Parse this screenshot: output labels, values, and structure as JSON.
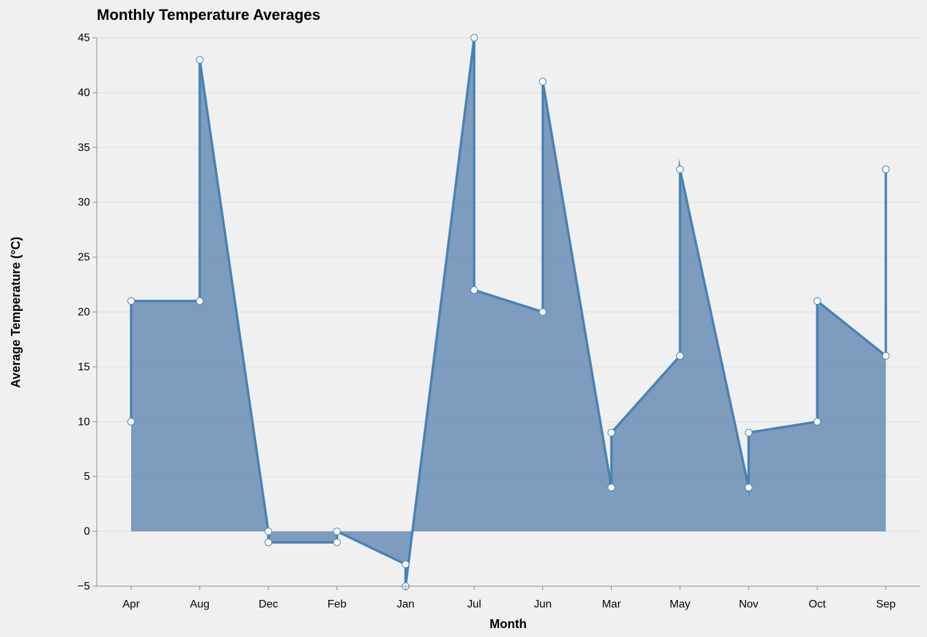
{
  "chart_data": {
    "type": "area",
    "title": "Monthly Temperature Averages",
    "xlabel": "Month",
    "ylabel": "Average Temperature (°C)",
    "categories": [
      "Apr",
      "Aug",
      "Dec",
      "Feb",
      "Jan",
      "Jul",
      "Jun",
      "Mar",
      "May",
      "Nov",
      "Oct",
      "Sep"
    ],
    "ylim": [
      -5,
      45
    ],
    "yticks": [
      -5,
      0,
      5,
      10,
      15,
      20,
      25,
      30,
      35,
      40,
      45
    ],
    "grid": true,
    "points": [
      {
        "month": "Apr",
        "value": 10
      },
      {
        "month": "Apr",
        "value": 21
      },
      {
        "month": "Aug",
        "value": 21
      },
      {
        "month": "Aug",
        "value": 43
      },
      {
        "month": "Dec",
        "value": 0
      },
      {
        "month": "Dec",
        "value": -1
      },
      {
        "month": "Feb",
        "value": -1
      },
      {
        "month": "Feb",
        "value": 0
      },
      {
        "month": "Jan",
        "value": -3
      },
      {
        "month": "Jan",
        "value": -5
      },
      {
        "month": "Jul",
        "value": 45
      },
      {
        "month": "Jul",
        "value": 22
      },
      {
        "month": "Jun",
        "value": 20
      },
      {
        "month": "Jun",
        "value": 41
      },
      {
        "month": "Mar",
        "value": 4
      },
      {
        "month": "Mar",
        "value": 9
      },
      {
        "month": "May",
        "value": 16
      },
      {
        "month": "May",
        "value": 33
      },
      {
        "month": "Nov",
        "value": 4
      },
      {
        "month": "Nov",
        "value": 9
      },
      {
        "month": "Oct",
        "value": 10
      },
      {
        "month": "Oct",
        "value": 21
      },
      {
        "month": "Sep",
        "value": 16
      },
      {
        "month": "Sep",
        "value": 33
      }
    ],
    "colors": {
      "area": "#4c78a8",
      "line": "#4682b4",
      "point_fill": "#ffffff"
    }
  }
}
